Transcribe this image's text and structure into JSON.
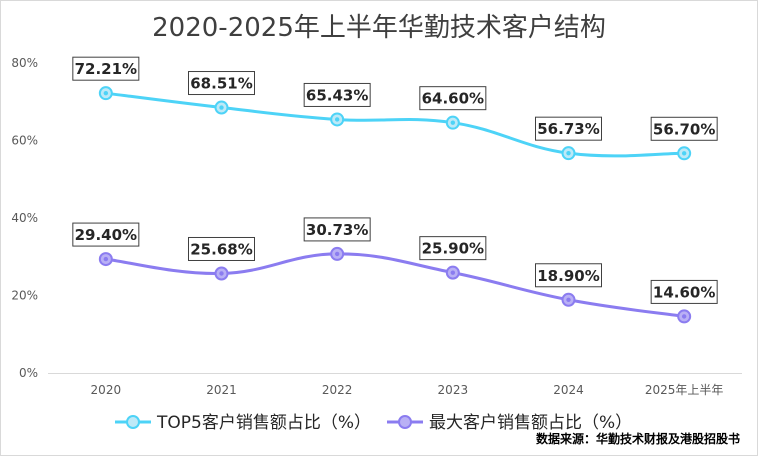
{
  "chart_data": {
    "type": "line",
    "title": "2020-2025年上半年华勤技术客户结构",
    "categories": [
      "2020",
      "2021",
      "2022",
      "2023",
      "2024",
      "2025年上半年"
    ],
    "y_ticks": [
      "0%",
      "20%",
      "40%",
      "60%",
      "80%"
    ],
    "ylim": [
      0,
      80
    ],
    "grid": false,
    "legend_position": "bottom",
    "series": [
      {
        "name": "TOP5客户销售额占比（%）",
        "color": "#4dd3f7",
        "marker_color": "#bde9f7",
        "values": [
          72.21,
          68.51,
          65.43,
          64.6,
          56.73,
          56.7
        ],
        "labels": [
          "72.21%",
          "68.51%",
          "65.43%",
          "64.60%",
          "56.73%",
          "56.70%"
        ]
      },
      {
        "name": "最大客户销售额占比（%）",
        "color": "#8b7cf0",
        "marker_color": "#b9b0f5",
        "values": [
          29.4,
          25.68,
          30.73,
          25.9,
          18.9,
          14.6
        ],
        "labels": [
          "29.40%",
          "25.68%",
          "30.73%",
          "25.90%",
          "18.90%",
          "14.60%"
        ]
      }
    ],
    "source": "数据来源：华勤技术财报及港股招股书"
  }
}
